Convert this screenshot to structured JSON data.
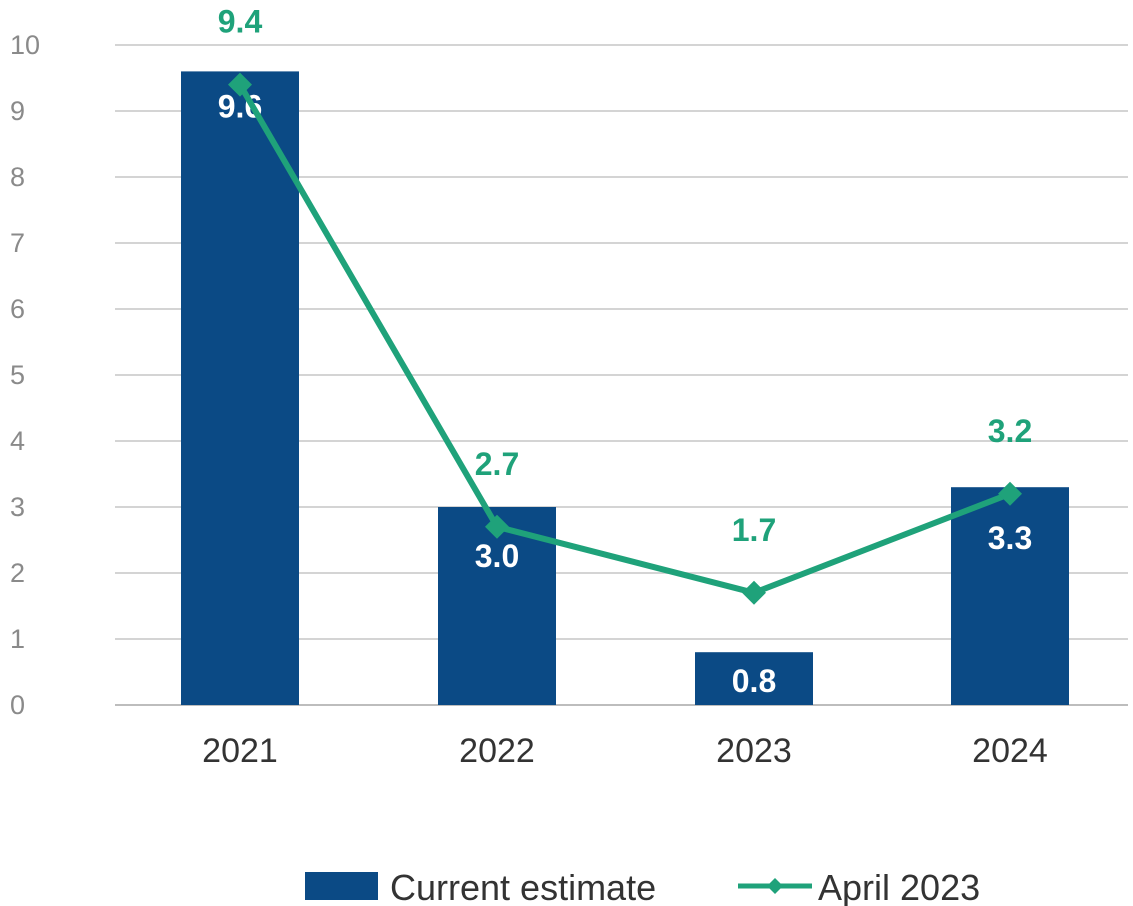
{
  "chart_data": {
    "type": "bar",
    "categories": [
      "2021",
      "2022",
      "2023",
      "2024"
    ],
    "ylim": [
      0,
      10
    ],
    "yticks": [
      0,
      1,
      2,
      3,
      4,
      5,
      6,
      7,
      8,
      9,
      10
    ],
    "grid": true,
    "legend_position": "bottom",
    "series": [
      {
        "name": "Current estimate",
        "type": "bar",
        "values": [
          9.6,
          3.0,
          0.8,
          3.3
        ],
        "labels": [
          "9.6",
          "3.0",
          "0.8",
          "3.3"
        ],
        "color": "#0b4a85"
      },
      {
        "name": "April 2023",
        "type": "line",
        "marker": "diamond",
        "values": [
          9.4,
          2.7,
          1.7,
          3.2
        ],
        "labels": [
          "9.4",
          "2.7",
          "1.7",
          "3.2"
        ],
        "color": "#1fa27a"
      }
    ]
  }
}
